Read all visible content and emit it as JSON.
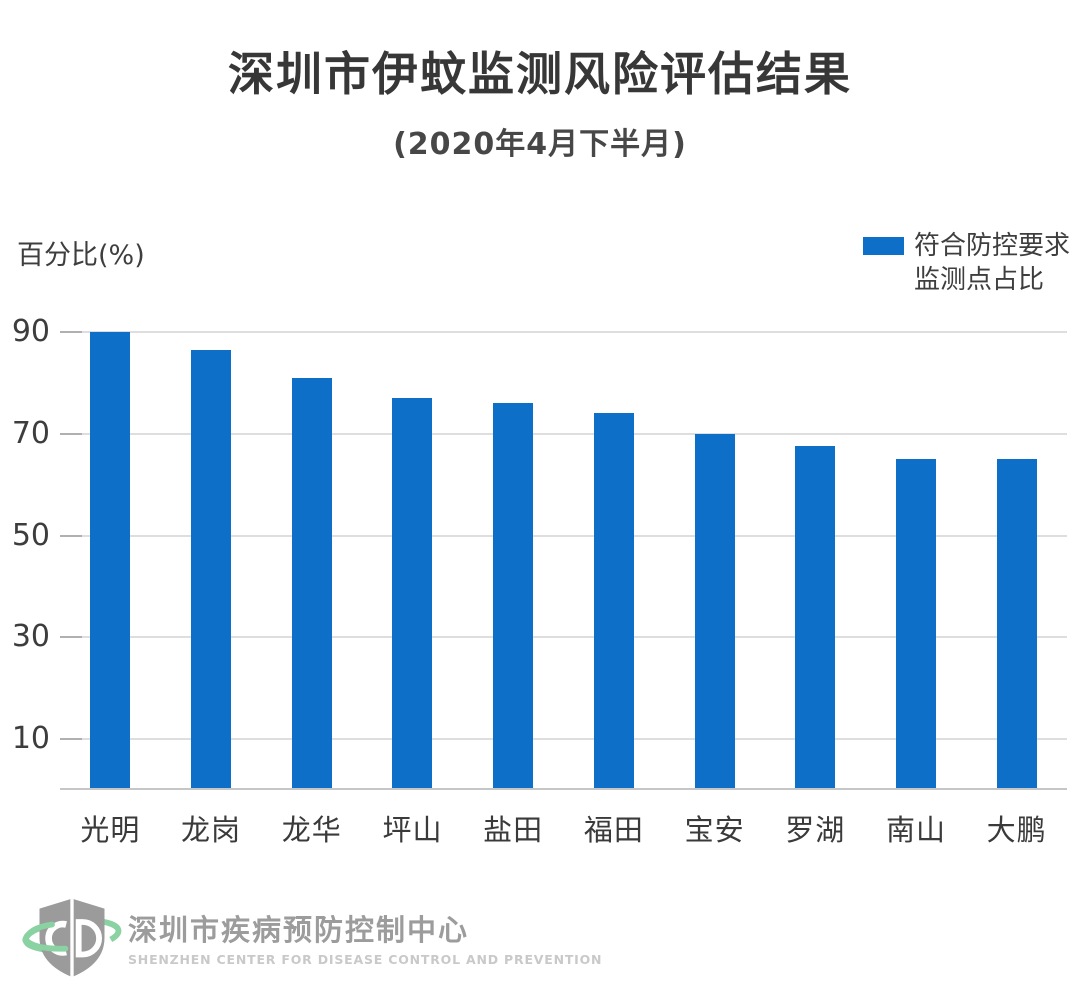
{
  "title": "深圳市伊蚊监测风险评估结果",
  "subtitle": "(2020年4月下半月)",
  "legend": {
    "lines": [
      "符合防控要求",
      "监测点占比"
    ],
    "swatch_color": "#0d6fc8",
    "swatch_icon": "blue-bar-swatch"
  },
  "chart_data": {
    "type": "bar",
    "title": "深圳市伊蚊监测风险评估结果",
    "subtitle": "(2020年4月下半月)",
    "ylabel": "百分比(%)",
    "xlabel": "",
    "categories": [
      "光明",
      "龙岗",
      "龙华",
      "坪山",
      "盐田",
      "福田",
      "宝安",
      "罗湖",
      "南山",
      "大鹏"
    ],
    "series": [
      {
        "name": "符合防控要求监测点占比",
        "values": [
          90,
          86.5,
          81,
          77,
          76,
          74,
          70,
          67.5,
          65,
          65
        ]
      }
    ],
    "ylim": [
      0,
      100
    ],
    "yticks": [
      10,
      30,
      50,
      70,
      90
    ],
    "grid": true,
    "legend_position": "top-right",
    "bar_color": "#0d6fc8",
    "gridline_color": "#dedede",
    "baseline_color": "#c6c6c6"
  },
  "footer": {
    "org_cn": "深圳市疾病预防控制中心",
    "org_en": "SHENZHEN CENTER FOR DISEASE CONTROL AND PREVENTION",
    "logo": "shenzhen-cdc-shield-logo",
    "logo_shield_color": "#9b9b9b",
    "logo_ring_color": "#8ad2a2"
  }
}
